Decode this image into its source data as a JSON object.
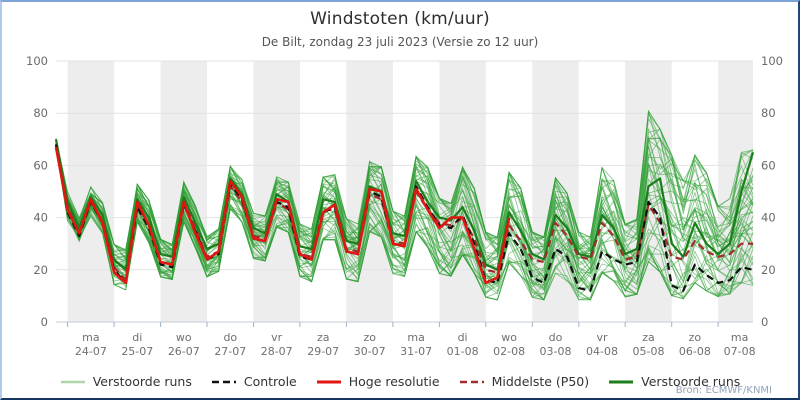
{
  "header": {
    "title": "Windstoten (km/uur)",
    "subtitle": "De Bilt, zondag 23 juli 2023 (Versie zo 12 uur)",
    "source": "Bron: ECMWF/KNMI"
  },
  "legend": {
    "items": [
      {
        "label": "Verstoorde runs",
        "color": "#aed6a8",
        "dash": false,
        "width": 2.4
      },
      {
        "label": "Controle",
        "color": "#111111",
        "dash": true,
        "width": 2.4
      },
      {
        "label": "Hoge resolutie",
        "color": "#df1612",
        "dash": false,
        "width": 3
      },
      {
        "label": "Middelste (P50)",
        "color": "#a32b2b",
        "dash": true,
        "width": 2.4
      },
      {
        "label": "Verstoorde runs",
        "color": "#1b7e1b",
        "dash": false,
        "width": 3
      }
    ]
  },
  "colors": {
    "band_fill": "#ededed",
    "gridline": "#e2e2e2",
    "axis_line": "#c3cdda",
    "tick_mark": "#9fb0c8",
    "tick_label": "#6a6a6a",
    "day_label": "#707070"
  },
  "chart_data": {
    "type": "line",
    "title": "Windstoten (km/uur)",
    "subtitle": "De Bilt, zondag 23 juli 2023 (Versie zo 12 uur)",
    "ylabel": "km/uur",
    "ylim": [
      0,
      100
    ],
    "yticks": [
      0,
      20,
      40,
      60,
      80,
      100
    ],
    "grid": true,
    "legend_position": "bottom",
    "time_start": "23-07 18:00",
    "time_step_hours": 6,
    "points_count": 61,
    "days": [
      {
        "weekday": "ma",
        "date": "24-07",
        "shaded": true
      },
      {
        "weekday": "di",
        "date": "25-07",
        "shaded": false
      },
      {
        "weekday": "wo",
        "date": "26-07",
        "shaded": true
      },
      {
        "weekday": "do",
        "date": "27-07",
        "shaded": false
      },
      {
        "weekday": "vr",
        "date": "28-07",
        "shaded": true
      },
      {
        "weekday": "za",
        "date": "29-07",
        "shaded": false
      },
      {
        "weekday": "zo",
        "date": "30-07",
        "shaded": true
      },
      {
        "weekday": "ma",
        "date": "31-07",
        "shaded": false
      },
      {
        "weekday": "di",
        "date": "01-08",
        "shaded": true
      },
      {
        "weekday": "wo",
        "date": "02-08",
        "shaded": false
      },
      {
        "weekday": "do",
        "date": "03-08",
        "shaded": true
      },
      {
        "weekday": "vr",
        "date": "04-08",
        "shaded": false
      },
      {
        "weekday": "za",
        "date": "05-08",
        "shaded": true
      },
      {
        "weekday": "zo",
        "date": "06-08",
        "shaded": false
      },
      {
        "weekday": "ma",
        "date": "07-08",
        "shaded": true
      }
    ],
    "series": [
      {
        "name": "Controle",
        "color": "#111111",
        "dash": true,
        "width": 2.2,
        "values": [
          68,
          42,
          33,
          46,
          38,
          20,
          15,
          44,
          36,
          22,
          21,
          45,
          35,
          24,
          26,
          53,
          47,
          32,
          31,
          46,
          44,
          25,
          24,
          42,
          44,
          27,
          26,
          50,
          48,
          30,
          29,
          52,
          44,
          37,
          36,
          41,
          30,
          16,
          15,
          34,
          28,
          17,
          15,
          28,
          25,
          13,
          12,
          27,
          24,
          22,
          23,
          46,
          40,
          14,
          12,
          22,
          18,
          15,
          16,
          21,
          20
        ]
      },
      {
        "name": "Hoge resolutie",
        "color": "#df1612",
        "dash": false,
        "width": 2.6,
        "values": [
          67,
          43,
          34,
          47,
          38,
          19,
          15,
          46,
          37,
          23,
          22,
          46,
          34,
          24,
          27,
          54,
          48,
          32,
          31,
          47,
          46,
          26,
          24,
          42,
          45,
          27,
          26,
          51,
          50,
          30,
          29,
          51,
          43,
          36,
          40,
          40,
          28,
          15,
          17,
          40
        ]
      },
      {
        "name": "Middelste (P50)",
        "color": "#a32b2b",
        "dash": true,
        "width": 2.2,
        "values": [
          68,
          44,
          34,
          46,
          39,
          21,
          16,
          45,
          37,
          23,
          22,
          46,
          36,
          25,
          27,
          52,
          46,
          33,
          32,
          46,
          43,
          26,
          25,
          43,
          43,
          28,
          27,
          49,
          47,
          31,
          30,
          50,
          43,
          38,
          37,
          40,
          32,
          20,
          19,
          37,
          31,
          24,
          23,
          38,
          33,
          25,
          24,
          38,
          33,
          24,
          25,
          45,
          38,
          25,
          24,
          31,
          27,
          25,
          26,
          30,
          30
        ]
      },
      {
        "name": "Verstoorde runs",
        "color": "#1b7e1b",
        "dash": false,
        "width": 2.2,
        "values": [
          70,
          46,
          36,
          48,
          41,
          24,
          20,
          47,
          40,
          26,
          25,
          48,
          38,
          28,
          30,
          55,
          49,
          36,
          34,
          49,
          46,
          29,
          28,
          47,
          46,
          31,
          30,
          52,
          50,
          34,
          33,
          54,
          46,
          40,
          39,
          44,
          35,
          22,
          20,
          42,
          35,
          26,
          24,
          41,
          36,
          26,
          25,
          41,
          36,
          26,
          28,
          52,
          55,
          30,
          25,
          38,
          30,
          26,
          30,
          50,
          65
        ]
      }
    ],
    "ensemble": {
      "name": "Verstoorde runs",
      "count": 50,
      "color": "#32a036",
      "opacity": 0.55,
      "width": 0.9,
      "seed": 20230723,
      "envelope_min": [
        66,
        38,
        30,
        40,
        33,
        14,
        12,
        38,
        30,
        17,
        16,
        38,
        28,
        17,
        19,
        43,
        38,
        24,
        23,
        36,
        34,
        17,
        15,
        31,
        31,
        16,
        15,
        34,
        32,
        18,
        17,
        34,
        28,
        18,
        17,
        25,
        18,
        9,
        8,
        22,
        17,
        9,
        8,
        18,
        15,
        8,
        8,
        18,
        15,
        9,
        10,
        22,
        18,
        9,
        8,
        14,
        11,
        9,
        10,
        14,
        13
      ],
      "envelope_max": [
        71,
        50,
        40,
        52,
        46,
        30,
        28,
        53,
        47,
        32,
        30,
        54,
        45,
        33,
        36,
        60,
        55,
        42,
        41,
        56,
        54,
        38,
        36,
        56,
        57,
        40,
        38,
        62,
        60,
        43,
        41,
        64,
        60,
        48,
        46,
        60,
        52,
        35,
        33,
        58,
        52,
        35,
        33,
        56,
        50,
        35,
        33,
        60,
        55,
        38,
        40,
        82,
        75,
        65,
        55,
        65,
        58,
        45,
        48,
        66,
        67
      ]
    }
  }
}
